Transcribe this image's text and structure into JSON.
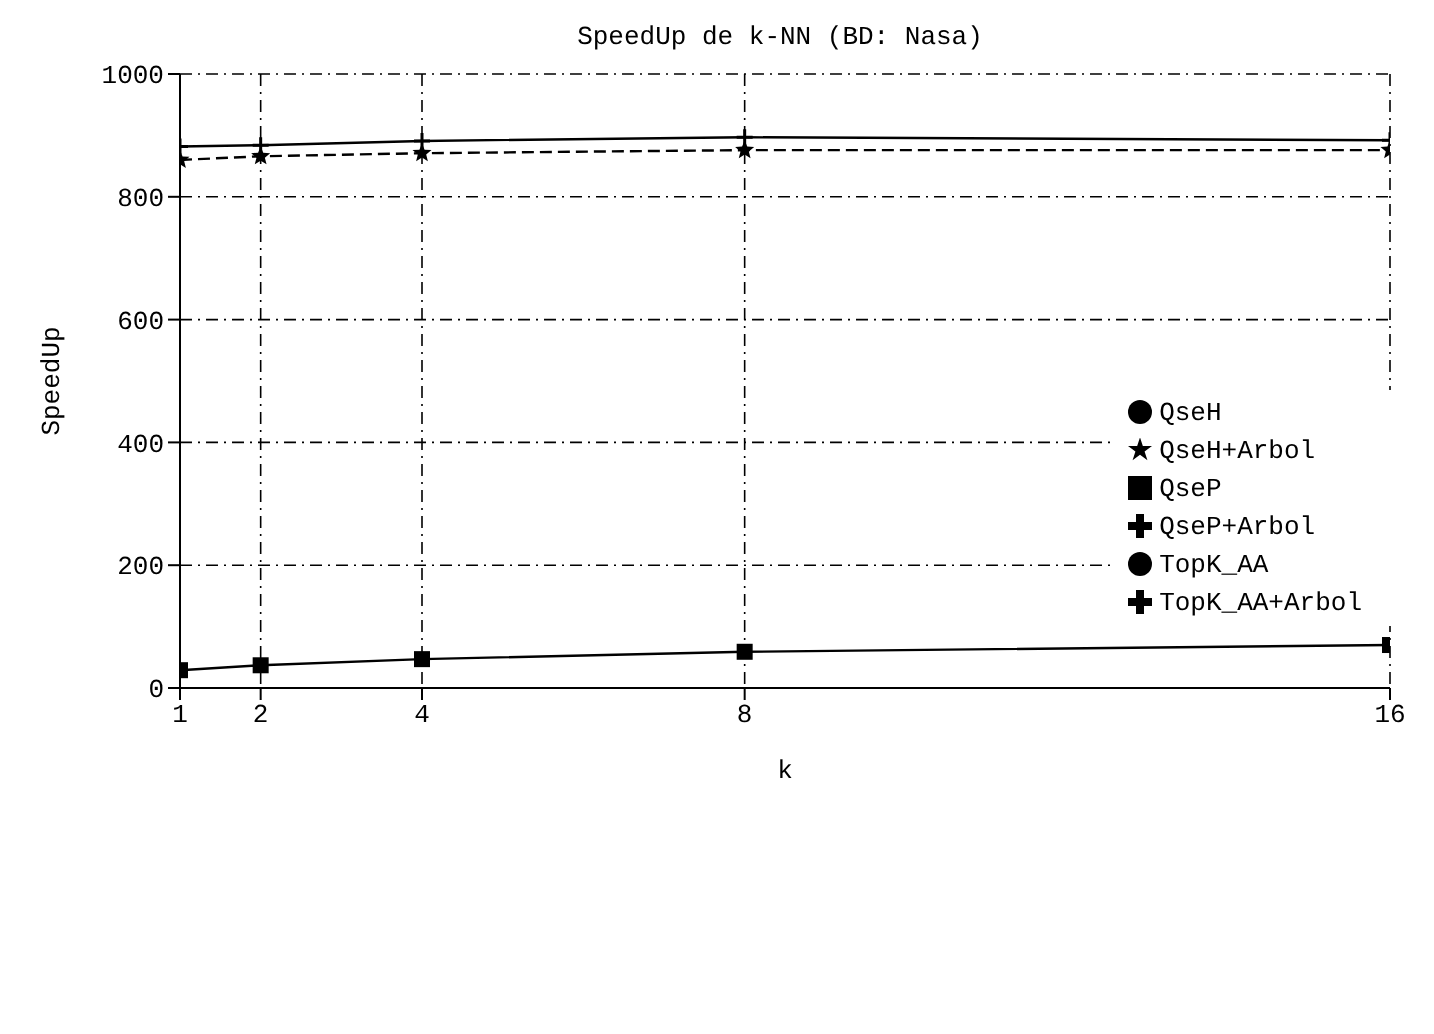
{
  "chart_data": {
    "type": "line",
    "title": "SpeedUp de k-NN (BD: Nasa)",
    "xlabel": "k",
    "ylabel": "SpeedUp",
    "x": [
      1,
      2,
      4,
      8,
      16
    ],
    "xlim": [
      1,
      16
    ],
    "xticks": [
      1,
      2,
      4,
      8,
      16
    ],
    "ylim": [
      0,
      1000
    ],
    "yticks": [
      0,
      200,
      400,
      600,
      800,
      1000
    ],
    "grid": true,
    "legend": "right",
    "series": [
      {
        "name": "TopK_AA+Arbol",
        "color": "#000000",
        "values": [
          882,
          884,
          891,
          897,
          892
        ],
        "marker": "cross",
        "line_style": "solid"
      },
      {
        "name": "QseP+Arbol",
        "color": "#000000",
        "values": [
          null,
          null,
          null,
          null,
          null
        ],
        "marker": "cross",
        "line_style": "dashed"
      },
      {
        "name": "QseH+Arbol",
        "color": "#000000",
        "values": [
          860,
          866,
          871,
          876,
          876
        ],
        "marker": "star",
        "line_style": "dashed"
      },
      {
        "name": "TopK_AA",
        "color": "#000000",
        "values": [
          null,
          null,
          null,
          null,
          null
        ],
        "marker": "circle",
        "line_style": "dotted"
      },
      {
        "name": "QseP",
        "color": "#000000",
        "values": [
          29,
          37,
          47,
          59,
          70
        ],
        "marker": "square",
        "line_style": "solid"
      },
      {
        "name": "QseH",
        "color": "#000000",
        "values": [
          null,
          null,
          null,
          null,
          null
        ],
        "marker": "circle",
        "line_style": "dotted"
      }
    ]
  }
}
